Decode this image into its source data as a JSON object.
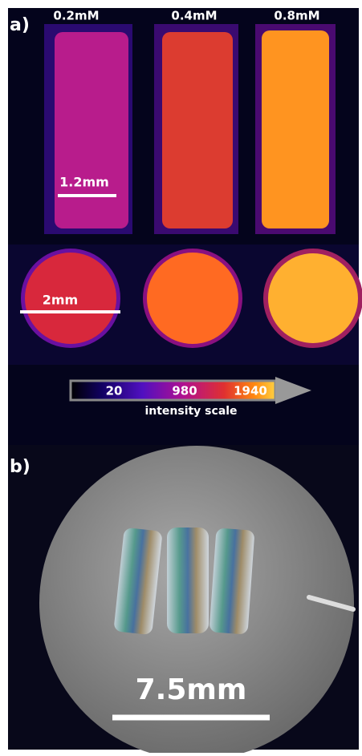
{
  "panel_a": {
    "label": "a)",
    "concentrations": [
      "0.2mM",
      "0.4mM",
      "0.8mM"
    ],
    "scale_bar_top": "1.2mm",
    "scale_bar_bottom": "2mm",
    "colorbar": {
      "ticks": [
        20,
        980,
        1940
      ],
      "caption": "intensity scale"
    }
  },
  "panel_b": {
    "label": "b)",
    "scale_bar": "7.5mm"
  }
}
